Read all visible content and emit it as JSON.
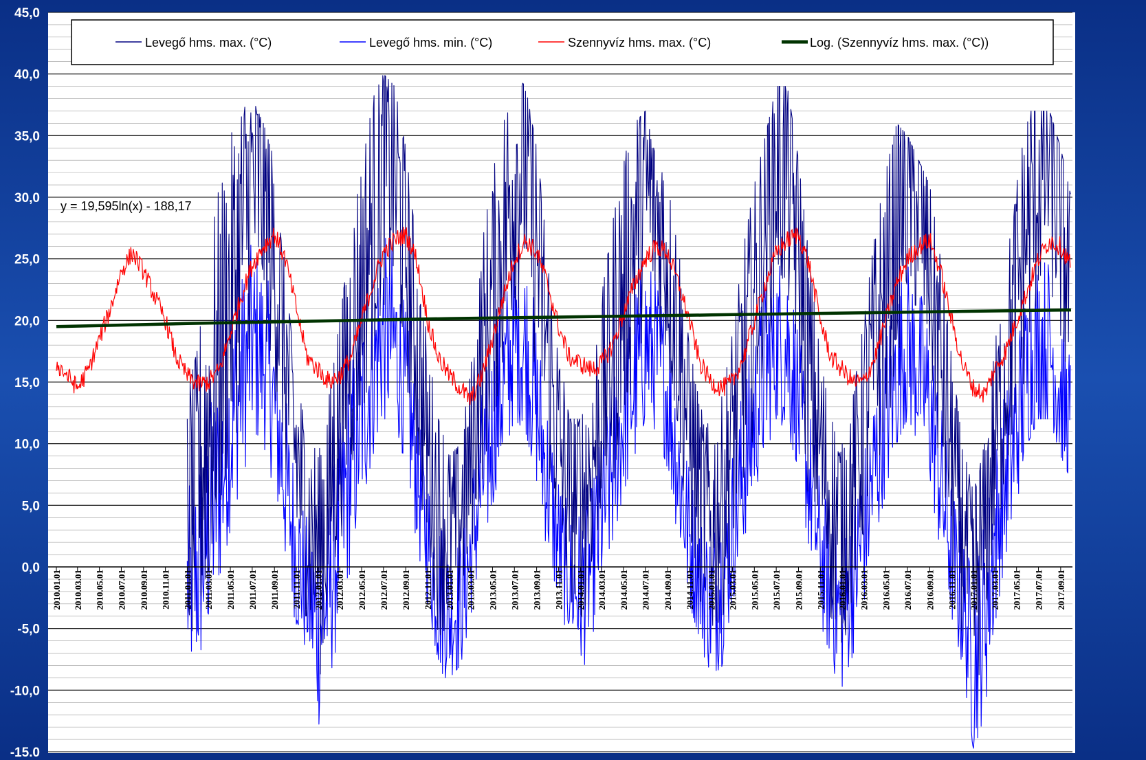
{
  "chart_data": {
    "type": "line",
    "equation": "y = 19,595ln(x) - 188,17",
    "ylim": [
      -15,
      45
    ],
    "y_ticks": [
      "-15,0",
      "-10,0",
      "-5,0",
      "0,0",
      "5,0",
      "10,0",
      "15,0",
      "20,0",
      "25,0",
      "30,0",
      "35,0",
      "40,0",
      "45,0"
    ],
    "x_range": [
      "2010.01.01",
      "2017.09.30"
    ],
    "x_tick_labels": [
      "2010.01.01",
      "2010.03.01",
      "2010.05.01",
      "2010.07.01",
      "2010.09.01",
      "2010.11.01",
      "2011.01.01",
      "2011.03.01",
      "2011.05.01",
      "2011.07.01",
      "2011.09.01",
      "2011.11.01",
      "2012.01.01",
      "2012.03.01",
      "2012.05.01",
      "2012.07.01",
      "2012.09.01",
      "2012.11.01",
      "2013.01.01",
      "2013.03.01",
      "2013.05.01",
      "2013.07.01",
      "2013.09.01",
      "2013.11.01",
      "2014.01.01",
      "2014.03.01",
      "2014.05.01",
      "2014.07.01",
      "2014.09.01",
      "2014.11.01",
      "2015.01.01",
      "2015.03.01",
      "2015.05.01",
      "2015.07.01",
      "2015.09.01",
      "2015.11.01",
      "2016.01.01",
      "2016.03.01",
      "2016.05.01",
      "2016.07.01",
      "2016.09.01",
      "2016.11.01",
      "2017.01.01",
      "2017.03.01",
      "2017.05.01",
      "2017.07.01",
      "2017.09.01"
    ],
    "grid": true,
    "legend_position": "top",
    "series": [
      {
        "name": "Levegő hms. max. (°C)",
        "color": "#000080",
        "start": "2011.01.01",
        "x": [
          "2011.01.01",
          "2011.02.01",
          "2011.03.01",
          "2011.04.01",
          "2011.05.01",
          "2011.06.01",
          "2011.07.01",
          "2011.08.01",
          "2011.09.01",
          "2011.10.01",
          "2011.11.01",
          "2011.12.01",
          "2012.01.01",
          "2012.02.01",
          "2012.03.01",
          "2012.04.01",
          "2012.05.01",
          "2012.06.01",
          "2012.07.01",
          "2012.08.01",
          "2012.09.01",
          "2012.10.01",
          "2012.11.01",
          "2012.12.01",
          "2013.01.01",
          "2013.02.01",
          "2013.03.01",
          "2013.04.01",
          "2013.05.01",
          "2013.06.01",
          "2013.07.01",
          "2013.08.01",
          "2013.09.01",
          "2013.10.01",
          "2013.11.01",
          "2013.12.01",
          "2014.01.01",
          "2014.02.01",
          "2014.03.01",
          "2014.04.01",
          "2014.05.01",
          "2014.06.01",
          "2014.07.01",
          "2014.08.01",
          "2014.09.01",
          "2014.10.01",
          "2014.11.01",
          "2014.12.01",
          "2015.01.01",
          "2015.02.01",
          "2015.03.01",
          "2015.04.01",
          "2015.05.01",
          "2015.06.01",
          "2015.07.01",
          "2015.08.01",
          "2015.09.01",
          "2015.10.01",
          "2015.11.01",
          "2015.12.01",
          "2016.01.01",
          "2016.02.01",
          "2016.03.01",
          "2016.04.01",
          "2016.05.01",
          "2016.06.01",
          "2016.07.01",
          "2016.08.01",
          "2016.09.01",
          "2016.10.01",
          "2016.11.01",
          "2016.12.01",
          "2017.01.01",
          "2017.02.01",
          "2017.03.01",
          "2017.04.01",
          "2017.05.01",
          "2017.06.01",
          "2017.07.01",
          "2017.08.01",
          "2017.09.01",
          "2017.09.30"
        ],
        "values": [
          4,
          7,
          12,
          17,
          22,
          27,
          31,
          30,
          25,
          17,
          9,
          4,
          2,
          6,
          13,
          18,
          23,
          28,
          33,
          32,
          26,
          18,
          10,
          5,
          3,
          4,
          9,
          17,
          22,
          27,
          32,
          33,
          26,
          18,
          10,
          6,
          6,
          8,
          14,
          18,
          23,
          27,
          31,
          29,
          25,
          19,
          11,
          6,
          3,
          6,
          11,
          17,
          22,
          28,
          33,
          33,
          26,
          16,
          10,
          5,
          3,
          7,
          12,
          18,
          22,
          28,
          31,
          29,
          25,
          17,
          9,
          3,
          -2,
          3,
          10,
          16,
          22,
          28,
          32,
          33,
          28,
          22
        ],
        "min_envelope": [
          -10,
          -9,
          -4,
          2,
          6,
          10,
          14,
          15,
          11,
          4,
          -5,
          -6,
          -14,
          -10,
          -3,
          4,
          9,
          14,
          16,
          16,
          12,
          6,
          -1,
          -9,
          -9,
          -6,
          -2,
          5,
          10,
          13,
          16,
          16,
          11,
          5,
          -2,
          -5,
          -10,
          -5,
          0,
          4,
          8,
          12,
          15,
          14,
          12,
          6,
          -2,
          -5,
          -10,
          -7,
          -2,
          4,
          9,
          13,
          15,
          14,
          11,
          2,
          -3,
          -8,
          -10,
          -6,
          -1,
          4,
          8,
          13,
          15,
          13,
          10,
          3,
          -3,
          -7,
          -15,
          -8,
          -1,
          4,
          9,
          13,
          15,
          16,
          12,
          8
        ],
        "max_envelope": [
          14,
          18,
          26,
          31,
          35,
          37,
          38,
          36,
          33,
          24,
          15,
          11,
          9,
          14,
          20,
          27,
          33,
          38,
          40,
          39,
          34,
          26,
          18,
          12,
          9,
          10,
          16,
          26,
          32,
          36,
          40,
          39,
          34,
          26,
          18,
          12,
          12,
          14,
          22,
          28,
          33,
          36,
          37,
          33,
          31,
          26,
          18,
          13,
          11,
          14,
          19,
          26,
          31,
          35,
          39,
          39,
          33,
          25,
          17,
          12,
          10,
          14,
          20,
          27,
          32,
          36,
          35,
          33,
          31,
          25,
          17,
          10,
          6,
          10,
          18,
          24,
          31,
          37,
          37,
          37,
          34,
          30
        ]
      },
      {
        "name": "Levegő hms. min. (°C)",
        "color": "#0000ff",
        "start": "2011.01.01",
        "x": [
          "2011.01.01",
          "2011.02.01",
          "2011.03.01",
          "2011.04.01",
          "2011.05.01",
          "2011.06.01",
          "2011.07.01",
          "2011.08.01",
          "2011.09.01",
          "2011.10.01",
          "2011.11.01",
          "2011.12.01",
          "2012.01.01",
          "2012.02.01",
          "2012.03.01",
          "2012.04.01",
          "2012.05.01",
          "2012.06.01",
          "2012.07.01",
          "2012.08.01",
          "2012.09.01",
          "2012.10.01",
          "2012.11.01",
          "2012.12.01",
          "2013.01.01",
          "2013.02.01",
          "2013.03.01",
          "2013.04.01",
          "2013.05.01",
          "2013.06.01",
          "2013.07.01",
          "2013.08.01",
          "2013.09.01",
          "2013.10.01",
          "2013.11.01",
          "2013.12.01",
          "2014.01.01",
          "2014.02.01",
          "2014.03.01",
          "2014.04.01",
          "2014.05.01",
          "2014.06.01",
          "2014.07.01",
          "2014.08.01",
          "2014.09.01",
          "2014.10.01",
          "2014.11.01",
          "2014.12.01",
          "2015.01.01",
          "2015.02.01",
          "2015.03.01",
          "2015.04.01",
          "2015.05.01",
          "2015.06.01",
          "2015.07.01",
          "2015.08.01",
          "2015.09.01",
          "2015.10.01",
          "2015.11.01",
          "2015.12.01",
          "2016.01.01",
          "2016.02.01",
          "2016.03.01",
          "2016.04.01",
          "2016.05.01",
          "2016.06.01",
          "2016.07.01",
          "2016.08.01",
          "2016.09.01",
          "2016.10.01",
          "2016.11.01",
          "2016.12.01",
          "2017.01.01",
          "2017.02.01",
          "2017.03.01",
          "2017.04.01",
          "2017.05.01",
          "2017.06.01",
          "2017.07.01",
          "2017.08.01",
          "2017.09.01",
          "2017.09.30"
        ],
        "values": [
          -2,
          0,
          3,
          7,
          11,
          15,
          18,
          17,
          13,
          7,
          1,
          -2,
          -5,
          -2,
          3,
          8,
          12,
          16,
          19,
          18,
          14,
          8,
          2,
          -2,
          -4,
          -3,
          1,
          7,
          11,
          15,
          18,
          18,
          13,
          7,
          2,
          -1,
          -2,
          0,
          4,
          8,
          12,
          15,
          18,
          17,
          14,
          8,
          2,
          -1,
          -3,
          -1,
          3,
          8,
          12,
          16,
          18,
          18,
          13,
          7,
          1,
          -2,
          -4,
          -1,
          3,
          8,
          12,
          16,
          18,
          16,
          13,
          7,
          1,
          -3,
          -8,
          -4,
          2,
          7,
          11,
          16,
          18,
          18,
          14,
          11
        ],
        "min_envelope": [
          -10,
          -9,
          -6,
          -1,
          3,
          7,
          10,
          10,
          6,
          0,
          -5,
          -7,
          -14,
          -10,
          -5,
          0,
          5,
          9,
          12,
          12,
          8,
          2,
          -3,
          -9,
          -9,
          -8,
          -4,
          1,
          5,
          9,
          12,
          11,
          7,
          1,
          -3,
          -6,
          -10,
          -6,
          -2,
          2,
          6,
          9,
          12,
          11,
          8,
          2,
          -3,
          -6,
          -10,
          -8,
          -3,
          2,
          6,
          9,
          12,
          11,
          8,
          1,
          -4,
          -9,
          -10,
          -7,
          -3,
          2,
          6,
          10,
          12,
          10,
          7,
          1,
          -4,
          -8,
          -15,
          -12,
          -5,
          1,
          5,
          10,
          12,
          12,
          9,
          7
        ],
        "max_envelope": [
          6,
          10,
          14,
          18,
          22,
          25,
          27,
          26,
          22,
          15,
          9,
          5,
          3,
          6,
          12,
          18,
          22,
          26,
          28,
          28,
          22,
          15,
          9,
          5,
          3,
          4,
          9,
          16,
          20,
          24,
          27,
          27,
          22,
          15,
          9,
          5,
          4,
          7,
          13,
          18,
          22,
          25,
          27,
          25,
          22,
          16,
          10,
          5,
          3,
          6,
          11,
          17,
          21,
          25,
          27,
          27,
          22,
          14,
          8,
          4,
          3,
          6,
          11,
          17,
          21,
          25,
          26,
          24,
          22,
          15,
          9,
          4,
          1,
          5,
          11,
          17,
          21,
          25,
          27,
          27,
          23,
          20
        ]
      },
      {
        "name": "Szennyvíz hms. max. (°C)",
        "color": "#ff0000",
        "start": "2010.01.01",
        "x": [
          "2010.01.01",
          "2010.02.01",
          "2010.03.01",
          "2010.04.01",
          "2010.05.01",
          "2010.06.01",
          "2010.07.01",
          "2010.08.01",
          "2010.09.01",
          "2010.10.01",
          "2010.11.01",
          "2010.12.01",
          "2011.01.01",
          "2011.02.01",
          "2011.03.01",
          "2011.04.01",
          "2011.05.01",
          "2011.06.01",
          "2011.07.01",
          "2011.08.01",
          "2011.09.01",
          "2011.10.01",
          "2011.11.01",
          "2011.12.01",
          "2012.01.01",
          "2012.02.01",
          "2012.03.01",
          "2012.04.01",
          "2012.05.01",
          "2012.06.01",
          "2012.07.01",
          "2012.08.01",
          "2012.09.01",
          "2012.10.01",
          "2012.11.01",
          "2012.12.01",
          "2013.01.01",
          "2013.02.01",
          "2013.03.01",
          "2013.04.01",
          "2013.05.01",
          "2013.06.01",
          "2013.07.01",
          "2013.08.01",
          "2013.09.01",
          "2013.10.01",
          "2013.11.01",
          "2013.12.01",
          "2014.01.01",
          "2014.02.01",
          "2014.03.01",
          "2014.04.01",
          "2014.05.01",
          "2014.06.01",
          "2014.07.01",
          "2014.08.01",
          "2014.09.01",
          "2014.10.01",
          "2014.11.01",
          "2014.12.01",
          "2015.01.01",
          "2015.02.01",
          "2015.03.01",
          "2015.04.01",
          "2015.05.01",
          "2015.06.01",
          "2015.07.01",
          "2015.08.01",
          "2015.09.01",
          "2015.10.01",
          "2015.11.01",
          "2015.12.01",
          "2016.01.01",
          "2016.02.01",
          "2016.03.01",
          "2016.04.01",
          "2016.05.01",
          "2016.06.01",
          "2016.07.01",
          "2016.08.01",
          "2016.09.01",
          "2016.10.01",
          "2016.11.01",
          "2016.12.01",
          "2017.01.01",
          "2017.02.01",
          "2017.03.01",
          "2017.04.01",
          "2017.05.01",
          "2017.06.01",
          "2017.07.01",
          "2017.08.01",
          "2017.09.01",
          "2017.09.30"
        ],
        "values": [
          16.5,
          15.5,
          14.5,
          16,
          18.5,
          21,
          24,
          25.5,
          24,
          22,
          20,
          17,
          15.5,
          14.8,
          15,
          16,
          19,
          22,
          24.5,
          26,
          27,
          25,
          21,
          17,
          16,
          15,
          15.5,
          17,
          20,
          23,
          25.5,
          26.5,
          27,
          25,
          20,
          17,
          15.5,
          14.5,
          13.5,
          15.5,
          18.5,
          22,
          25,
          26.5,
          25.5,
          23,
          19.5,
          17,
          16.5,
          16,
          16.5,
          18,
          20.5,
          23,
          25,
          26,
          25.5,
          23,
          20,
          16.5,
          15,
          14.5,
          15,
          17,
          20,
          23,
          25.5,
          26.5,
          27,
          24.5,
          20,
          17,
          16,
          15,
          15,
          17,
          20,
          23,
          25,
          26,
          26.5,
          24,
          20,
          16.5,
          14.5,
          14,
          16,
          17.5,
          20,
          22.5,
          25,
          26.5,
          26,
          24.5
        ]
      },
      {
        "name": "Log. (Szennyvíz hms. max. (°C))",
        "color": "#003300",
        "x": [
          "2010.01.01",
          "2011.01.01",
          "2012.01.01",
          "2013.01.01",
          "2014.01.01",
          "2015.01.01",
          "2016.01.01",
          "2017.01.01",
          "2017.09.30"
        ],
        "values": [
          19.5,
          19.75,
          19.95,
          20.15,
          20.3,
          20.45,
          20.6,
          20.75,
          20.85
        ]
      }
    ]
  }
}
